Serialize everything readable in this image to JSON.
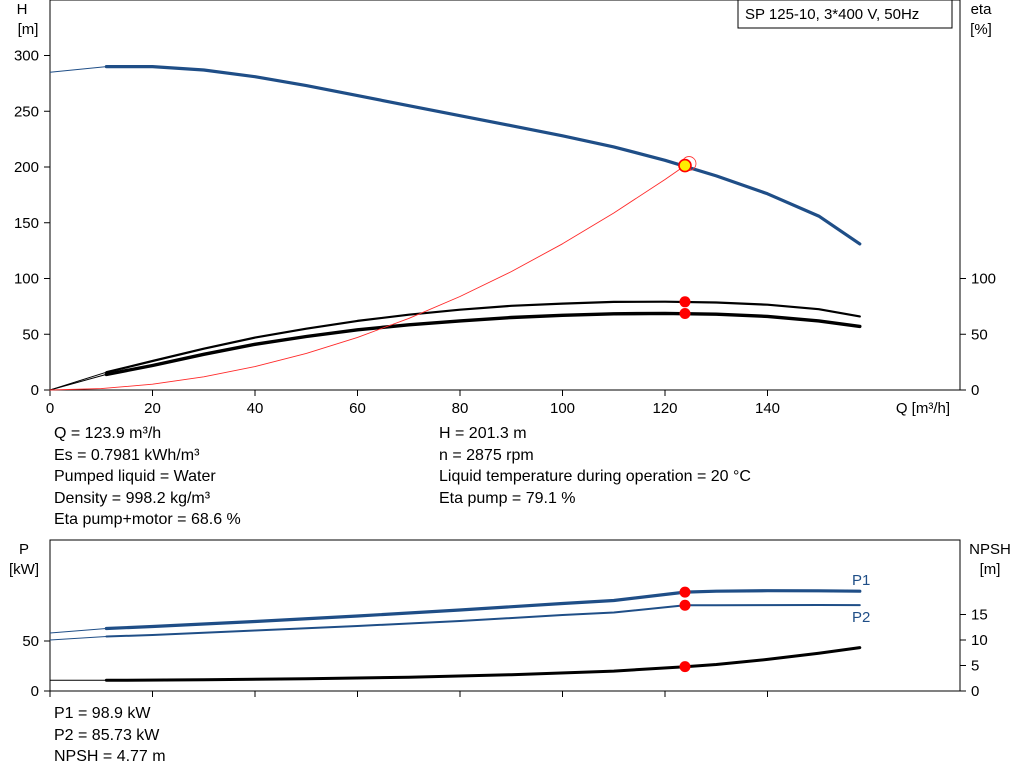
{
  "legend_box": "SP 125-10, 3*400 V, 50Hz",
  "colors": {
    "head_curve": "#1f4e87",
    "power_curve": "#1f4e87",
    "eta_curve": "#000000",
    "system_curve": "#ff2a2a",
    "duty_marker": "#ff0000",
    "duty_point_fill": "#ffee00"
  },
  "chart_data": [
    {
      "type": "line",
      "xlabel": "Q [m³/h]",
      "ylabel_left": [
        "H",
        "[m]"
      ],
      "ylabel_right": [
        "eta",
        "[%]"
      ],
      "xlim": [
        0,
        175
      ],
      "ylim_left": [
        0,
        320
      ],
      "ylim_right": [
        0,
        320
      ],
      "x_ticks": [
        0,
        20,
        40,
        60,
        80,
        100,
        120,
        140
      ],
      "y_ticks_left": [
        0,
        50,
        100,
        150,
        200,
        250,
        300
      ],
      "y_ticks_right": [
        0,
        50,
        100
      ],
      "series": [
        {
          "key": "H",
          "axis": "left",
          "points": [
            [
              11,
              290
            ],
            [
              20,
              290
            ],
            [
              30,
              287
            ],
            [
              40,
              281
            ],
            [
              50,
              273
            ],
            [
              60,
              264
            ],
            [
              70,
              255
            ],
            [
              80,
              246
            ],
            [
              90,
              237
            ],
            [
              100,
              228
            ],
            [
              110,
              218
            ],
            [
              120,
              206
            ],
            [
              130,
              192
            ],
            [
              140,
              176
            ],
            [
              150,
              156
            ],
            [
              158,
              131
            ]
          ],
          "lead_in": [
            [
              0,
              285
            ],
            [
              11,
              290
            ]
          ]
        },
        {
          "key": "eta_pump",
          "axis": "right",
          "points": [
            [
              11,
              16
            ],
            [
              20,
              26
            ],
            [
              30,
              37
            ],
            [
              40,
              47
            ],
            [
              50,
              55
            ],
            [
              60,
              62
            ],
            [
              70,
              67.5
            ],
            [
              80,
              72
            ],
            [
              90,
              75.5
            ],
            [
              100,
              77.5
            ],
            [
              110,
              79
            ],
            [
              120,
              79.2
            ],
            [
              130,
              78.5
            ],
            [
              140,
              76.5
            ],
            [
              150,
              72.5
            ],
            [
              158,
              66
            ]
          ],
          "lead_in": [
            [
              0,
              0
            ],
            [
              11,
              16
            ]
          ]
        },
        {
          "key": "eta_pump_motor",
          "axis": "right",
          "points": [
            [
              11,
              14
            ],
            [
              20,
              22
            ],
            [
              30,
              32
            ],
            [
              40,
              41
            ],
            [
              50,
              48
            ],
            [
              60,
              54
            ],
            [
              70,
              58.5
            ],
            [
              80,
              62
            ],
            [
              90,
              65
            ],
            [
              100,
              67
            ],
            [
              110,
              68.3
            ],
            [
              120,
              68.7
            ],
            [
              130,
              68
            ],
            [
              140,
              66
            ],
            [
              150,
              62
            ],
            [
              158,
              57
            ]
          ],
          "lead_in": [
            [
              0,
              0
            ],
            [
              11,
              14
            ]
          ]
        },
        {
          "key": "system_curve",
          "axis": "left",
          "points": [
            [
              0,
              0
            ],
            [
              10,
              1.3
            ],
            [
              20,
              5.2
            ],
            [
              30,
              11.8
            ],
            [
              40,
              21
            ],
            [
              50,
              32.8
            ],
            [
              60,
              47.2
            ],
            [
              70,
              64.2
            ],
            [
              80,
              83.9
            ],
            [
              90,
              106.2
            ],
            [
              100,
              131.1
            ],
            [
              110,
              158.7
            ],
            [
              120,
              188.8
            ],
            [
              123.9,
              201.3
            ]
          ]
        }
      ],
      "duty_point": {
        "x": 123.9,
        "H": 201.3,
        "eta_pump": 79.1,
        "eta_pump_motor": 68.6
      }
    },
    {
      "type": "line",
      "ylabel_left": [
        "P",
        "[kW]"
      ],
      "ylabel_right": [
        "NPSH",
        "[m]"
      ],
      "xlim": [
        0,
        175
      ],
      "ylim_left": [
        0,
        100
      ],
      "ylim_right": [
        0,
        20
      ],
      "y_ticks_left": [
        0,
        50
      ],
      "y_ticks_right": [
        0,
        5,
        10,
        15
      ],
      "series": [
        {
          "key": "P1",
          "name": "P1",
          "axis": "left",
          "points": [
            [
              11,
              62.5
            ],
            [
              20,
              64.5
            ],
            [
              40,
              69.5
            ],
            [
              60,
              75
            ],
            [
              80,
              81
            ],
            [
              100,
              87.5
            ],
            [
              110,
              90.5
            ],
            [
              123.9,
              98.9
            ],
            [
              130,
              99.8
            ],
            [
              140,
              100.3
            ],
            [
              150,
              100.2
            ],
            [
              158,
              99.8
            ]
          ],
          "lead_in": [
            [
              0,
              58
            ],
            [
              11,
              62.5
            ]
          ]
        },
        {
          "key": "P2",
          "name": "P2",
          "axis": "left",
          "points": [
            [
              11,
              54.5
            ],
            [
              20,
              56
            ],
            [
              40,
              60.5
            ],
            [
              60,
              65
            ],
            [
              80,
              70
            ],
            [
              100,
              76
            ],
            [
              110,
              78.5
            ],
            [
              123.9,
              85.73
            ],
            [
              130,
              85.8
            ],
            [
              140,
              85.9
            ],
            [
              150,
              86
            ],
            [
              158,
              85.9
            ]
          ],
          "lead_in": [
            [
              0,
              51
            ],
            [
              11,
              54.5
            ]
          ]
        },
        {
          "key": "NPSH",
          "axis": "right",
          "points": [
            [
              11,
              2.1
            ],
            [
              30,
              2.2
            ],
            [
              50,
              2.4
            ],
            [
              70,
              2.7
            ],
            [
              90,
              3.2
            ],
            [
              110,
              3.9
            ],
            [
              123.9,
              4.77
            ],
            [
              130,
              5.2
            ],
            [
              140,
              6.2
            ],
            [
              150,
              7.4
            ],
            [
              158,
              8.5
            ]
          ],
          "lead_in": [
            [
              0,
              2.1
            ],
            [
              11,
              2.1
            ]
          ]
        }
      ],
      "duty_point": {
        "x": 123.9,
        "P1": 98.9,
        "P2": 85.73,
        "NPSH": 4.77
      }
    }
  ],
  "info_left": [
    "Q = 123.9 m³/h",
    "Es = 0.7981 kWh/m³",
    "Pumped liquid = Water",
    "Density = 998.2 kg/m³",
    "Eta pump+motor = 68.6 %"
  ],
  "info_right": [
    "H = 201.3 m",
    "n = 2875 rpm",
    "Liquid temperature during operation = 20 °C",
    "Eta pump = 79.1 %"
  ],
  "info_bottom": [
    "P1 = 98.9 kW",
    "P2 = 85.73 kW",
    "NPSH = 4.77 m"
  ]
}
